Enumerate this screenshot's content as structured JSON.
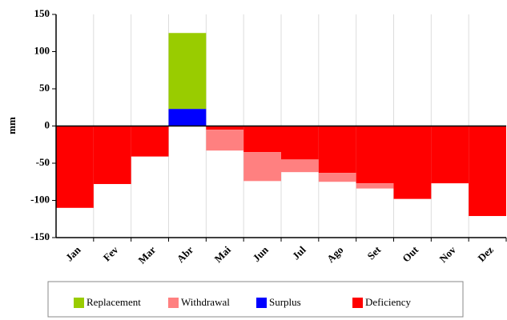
{
  "chart_data": {
    "type": "stacked_bar",
    "y_label": "mm",
    "categories": [
      "Jan",
      "Fev",
      "Mar",
      "Abr",
      "Mai",
      "Jun",
      "Jul",
      "Ago",
      "Set",
      "Out",
      "Nov",
      "Dez"
    ],
    "series": [
      {
        "name": "Replacement",
        "color": "#99cc00",
        "values": [
          0,
          0,
          0,
          102,
          0,
          0,
          0,
          0,
          0,
          0,
          0,
          0
        ]
      },
      {
        "name": "Withdrawal",
        "color": "#ff8080",
        "values": [
          0,
          0,
          0,
          0,
          -28,
          -39,
          -17,
          -12,
          -7,
          0,
          0,
          0
        ]
      },
      {
        "name": "Surplus",
        "color": "#0000ff",
        "values": [
          0,
          0,
          0,
          23,
          0,
          0,
          0,
          0,
          0,
          0,
          0,
          0
        ]
      },
      {
        "name": "Deficiency",
        "color": "#ff0000",
        "values": [
          -110,
          -78,
          -41,
          0,
          -5,
          -35,
          -45,
          -63,
          -77,
          -98,
          -77,
          -121
        ]
      }
    ],
    "ylim": [
      -150,
      150
    ],
    "yticks": [
      -150,
      -100,
      -50,
      0,
      50,
      100,
      150
    ],
    "grid": true,
    "legend": "bottom"
  }
}
